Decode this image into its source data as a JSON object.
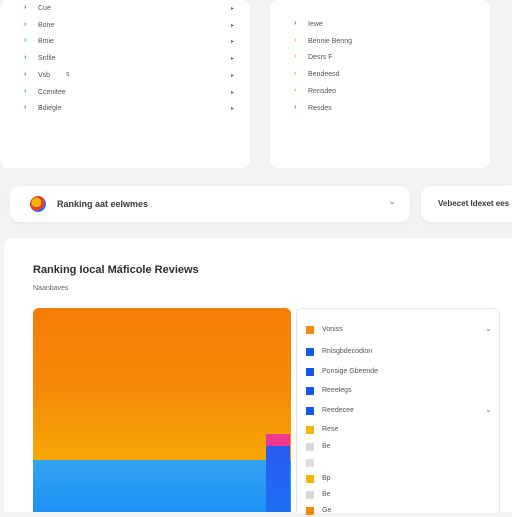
{
  "colors": {
    "background": "#f3f3f4",
    "accent_orange": "#f58a07",
    "accent_blue": "#1e90f5",
    "accent_pink": "#f0388f"
  },
  "left_menu": {
    "items": [
      {
        "label": "Cue",
        "bullet_color": "#2f6bff",
        "has_arrow": true
      },
      {
        "label": "Bone",
        "bullet_color": "#e3412f",
        "has_arrow": true
      },
      {
        "label": "Bmie",
        "bullet_color": "#1aa0d8",
        "has_arrow": true
      },
      {
        "label": "Snfile",
        "bullet_color": "#2aa745",
        "has_arrow": true
      },
      {
        "label": "Vsb",
        "bullet_color": "#2f6bff",
        "has_arrow": true
      },
      {
        "label": "Ccenitee",
        "bullet_color": "#1aa0d8",
        "has_arrow": true
      },
      {
        "label": "Bdiegle",
        "bullet_color": "#2f6bff",
        "has_arrow": true
      }
    ],
    "extra_mark": "s"
  },
  "right_menu": {
    "items": [
      {
        "label": "Iewe",
        "bullet_color": "#e0307f"
      },
      {
        "label": "Bennie Benng",
        "bullet_color": "#f2a900"
      },
      {
        "label": "Desrs F",
        "bullet_color": "#f2a900"
      },
      {
        "label": "Bendeesd",
        "bullet_color": "#f2a900"
      },
      {
        "label": "Rensdeo",
        "bullet_color": "#f2a900"
      },
      {
        "label": "Resdes",
        "bullet_color": "#e0307f"
      }
    ]
  },
  "search_bar": {
    "text": "Ranking aat eelwmes",
    "chevron": "⌄"
  },
  "side_pill": {
    "text": "Vebecet Idexet ees"
  },
  "main_panel": {
    "title": "Ranking Iocal Máficole Reviews",
    "subtitle": "Naanbaves"
  },
  "legend": {
    "items": [
      {
        "label": "Voniss",
        "color": "#f58a07",
        "chevron": "⌄"
      },
      {
        "label": "Rnlsgbdecodion",
        "color": "#1557e8"
      },
      {
        "label": "Ponsige Gbeende",
        "color": "#1557e8"
      },
      {
        "label": "Reeelegs",
        "color": "#1557e8"
      },
      {
        "label": "Reedecee",
        "color": "#1557e8",
        "chevron": "⌄"
      },
      {
        "label": "Rese",
        "color": "#f5b400"
      },
      {
        "label": "Be",
        "color": "#d8d8d8"
      },
      {
        "label": "",
        "color": "#e0e0e0"
      },
      {
        "label": "Bp",
        "color": "#f5b400"
      },
      {
        "label": "Be",
        "color": "#d8d8d8"
      },
      {
        "label": "Ge",
        "color": "#f58a07"
      }
    ]
  }
}
